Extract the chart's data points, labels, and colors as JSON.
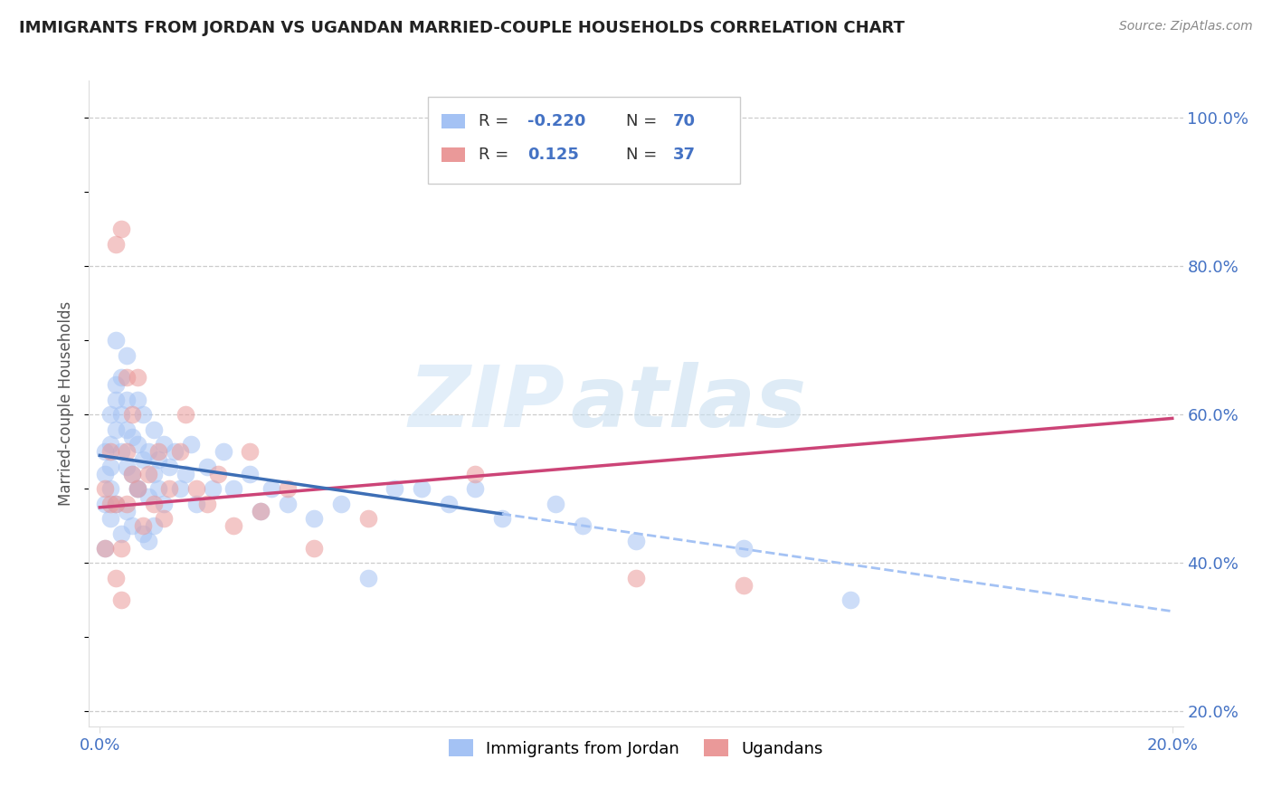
{
  "title": "IMMIGRANTS FROM JORDAN VS UGANDAN MARRIED-COUPLE HOUSEHOLDS CORRELATION CHART",
  "source": "Source: ZipAtlas.com",
  "ylabel": "Married-couple Households",
  "xlim": [
    0.0,
    0.2
  ],
  "ylim": [
    0.18,
    1.05
  ],
  "y_ticks": [
    0.2,
    0.4,
    0.6,
    0.8,
    1.0
  ],
  "y_tick_labels": [
    "20.0%",
    "40.0%",
    "60.0%",
    "80.0%",
    "100.0%"
  ],
  "x_tick_labels": [
    "0.0%",
    "20.0%"
  ],
  "blue_color": "#a4c2f4",
  "pink_color": "#ea9999",
  "blue_line_color": "#3d6eb5",
  "pink_line_color": "#cc4477",
  "dashed_line_color": "#a4c2f4",
  "watermark_zip": "ZIP",
  "watermark_atlas": "atlas",
  "legend_r1_label": "R = ",
  "legend_r1_val": "-0.220",
  "legend_n1_label": "N = ",
  "legend_n1_val": "70",
  "legend_r2_label": "R =  ",
  "legend_r2_val": "0.125",
  "legend_n2_label": "N = ",
  "legend_n2_val": "37",
  "blue_label": "Immigrants from Jordan",
  "pink_label": "Ugandans",
  "blue_line_x0": 0.0,
  "blue_line_x_solid_end": 0.075,
  "blue_line_x_dashed_end": 0.2,
  "blue_line_y0": 0.545,
  "blue_line_slope": -1.05,
  "pink_line_x0": 0.0,
  "pink_line_x1": 0.2,
  "pink_line_y0": 0.475,
  "pink_line_slope": 0.6,
  "blue_scatter_x": [
    0.001,
    0.001,
    0.001,
    0.002,
    0.002,
    0.002,
    0.002,
    0.003,
    0.003,
    0.003,
    0.003,
    0.004,
    0.004,
    0.004,
    0.005,
    0.005,
    0.005,
    0.005,
    0.006,
    0.006,
    0.007,
    0.007,
    0.007,
    0.008,
    0.008,
    0.009,
    0.009,
    0.01,
    0.01,
    0.011,
    0.011,
    0.012,
    0.012,
    0.013,
    0.014,
    0.015,
    0.016,
    0.017,
    0.018,
    0.02,
    0.021,
    0.023,
    0.025,
    0.028,
    0.03,
    0.032,
    0.035,
    0.04,
    0.045,
    0.05,
    0.055,
    0.06,
    0.065,
    0.07,
    0.075,
    0.085,
    0.09,
    0.1,
    0.12,
    0.14,
    0.001,
    0.002,
    0.003,
    0.004,
    0.005,
    0.006,
    0.007,
    0.008,
    0.009,
    0.01
  ],
  "blue_scatter_y": [
    0.52,
    0.48,
    0.55,
    0.56,
    0.6,
    0.5,
    0.53,
    0.64,
    0.58,
    0.62,
    0.7,
    0.55,
    0.65,
    0.6,
    0.62,
    0.58,
    0.68,
    0.53,
    0.57,
    0.52,
    0.62,
    0.56,
    0.5,
    0.54,
    0.6,
    0.55,
    0.49,
    0.58,
    0.52,
    0.5,
    0.54,
    0.56,
    0.48,
    0.53,
    0.55,
    0.5,
    0.52,
    0.56,
    0.48,
    0.53,
    0.5,
    0.55,
    0.5,
    0.52,
    0.47,
    0.5,
    0.48,
    0.46,
    0.48,
    0.38,
    0.5,
    0.5,
    0.48,
    0.5,
    0.46,
    0.48,
    0.45,
    0.43,
    0.42,
    0.35,
    0.42,
    0.46,
    0.48,
    0.44,
    0.47,
    0.45,
    0.5,
    0.44,
    0.43,
    0.45
  ],
  "pink_scatter_x": [
    0.001,
    0.001,
    0.002,
    0.002,
    0.003,
    0.003,
    0.004,
    0.004,
    0.005,
    0.005,
    0.006,
    0.007,
    0.008,
    0.009,
    0.01,
    0.011,
    0.012,
    0.013,
    0.015,
    0.016,
    0.018,
    0.02,
    0.022,
    0.025,
    0.028,
    0.03,
    0.035,
    0.04,
    0.05,
    0.07,
    0.1,
    0.12,
    0.003,
    0.004,
    0.005,
    0.006,
    0.007
  ],
  "pink_scatter_y": [
    0.5,
    0.42,
    0.55,
    0.48,
    0.48,
    0.38,
    0.42,
    0.35,
    0.55,
    0.48,
    0.52,
    0.5,
    0.45,
    0.52,
    0.48,
    0.55,
    0.46,
    0.5,
    0.55,
    0.6,
    0.5,
    0.48,
    0.52,
    0.45,
    0.55,
    0.47,
    0.5,
    0.42,
    0.46,
    0.52,
    0.38,
    0.37,
    0.83,
    0.85,
    0.65,
    0.6,
    0.65
  ]
}
